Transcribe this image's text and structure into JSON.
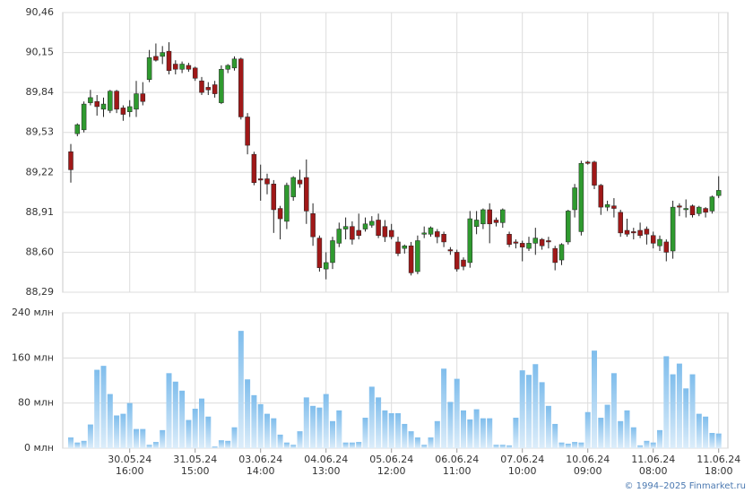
{
  "chart_data": [
    {
      "type": "candlestick",
      "up_color": "#2f9a2f",
      "down_color": "#a01818",
      "wick_color": "#222222",
      "open": [
        89.38,
        89.52,
        89.55,
        89.76,
        89.77,
        89.71,
        89.7,
        89.85,
        89.72,
        89.69,
        89.71,
        89.83,
        89.94,
        90.12,
        90.12,
        90.16,
        90.06,
        90.02,
        90.05,
        90.03,
        89.93,
        89.88,
        89.9,
        89.76,
        90.02,
        90.03,
        90.1,
        89.65,
        89.36,
        89.17,
        89.17,
        89.13,
        88.94,
        88.84,
        89.03,
        89.16,
        89.18,
        88.9,
        88.71,
        88.47,
        88.52,
        88.67,
        88.78,
        88.8,
        88.77,
        88.78,
        88.81,
        88.85,
        88.8,
        88.77,
        88.68,
        88.63,
        88.65,
        88.45,
        88.74,
        88.74,
        88.76,
        88.74,
        88.62,
        88.6,
        88.54,
        88.52,
        88.8,
        88.82,
        88.93,
        88.85,
        88.83,
        88.74,
        88.68,
        88.67,
        88.63,
        88.67,
        88.7,
        88.69,
        88.63,
        88.54,
        88.68,
        88.93,
        88.76,
        89.3,
        89.3,
        89.12,
        88.95,
        88.96,
        88.91,
        88.77,
        88.76,
        88.77,
        88.78,
        88.73,
        88.65,
        88.68,
        88.61,
        88.96,
        88.93,
        88.96,
        88.9,
        88.94,
        88.92,
        89.04
      ],
      "high": [
        89.44,
        89.6,
        89.77,
        89.86,
        89.82,
        89.8,
        89.86,
        89.86,
        89.74,
        89.78,
        89.93,
        89.92,
        90.17,
        90.22,
        90.2,
        90.23,
        90.09,
        90.08,
        90.07,
        90.04,
        89.96,
        89.92,
        89.93,
        90.05,
        90.06,
        90.12,
        90.11,
        89.68,
        89.38,
        89.28,
        89.21,
        89.16,
        88.96,
        89.14,
        89.19,
        89.24,
        89.32,
        88.98,
        88.73,
        88.6,
        88.72,
        88.83,
        88.87,
        88.84,
        88.9,
        88.87,
        88.88,
        88.9,
        88.85,
        88.82,
        88.72,
        88.66,
        88.68,
        88.73,
        88.8,
        88.8,
        88.78,
        88.76,
        88.64,
        88.62,
        88.56,
        88.92,
        88.92,
        88.94,
        88.98,
        88.87,
        88.94,
        88.76,
        88.7,
        88.69,
        88.72,
        88.79,
        88.71,
        88.72,
        88.65,
        88.67,
        88.93,
        89.13,
        89.31,
        89.31,
        89.31,
        89.13,
        89.0,
        89.02,
        88.93,
        88.86,
        88.79,
        88.83,
        88.8,
        88.76,
        88.73,
        88.7,
        89.0,
        88.98,
        89.01,
        88.97,
        88.96,
        88.95,
        89.04,
        89.19
      ],
      "low": [
        89.14,
        89.5,
        89.53,
        89.74,
        89.66,
        89.65,
        89.68,
        89.68,
        89.62,
        89.65,
        89.65,
        89.74,
        89.92,
        90.08,
        90.06,
        89.98,
        89.98,
        89.99,
        90.0,
        89.93,
        89.82,
        89.82,
        89.8,
        89.75,
        89.99,
        90.01,
        89.63,
        89.36,
        89.12,
        89.0,
        89.05,
        88.75,
        88.7,
        88.78,
        89.0,
        89.1,
        88.82,
        88.65,
        88.45,
        88.39,
        88.47,
        88.64,
        88.7,
        88.66,
        88.7,
        88.76,
        88.79,
        88.71,
        88.68,
        88.7,
        88.57,
        88.59,
        88.42,
        88.43,
        88.71,
        88.72,
        88.67,
        88.64,
        88.58,
        88.45,
        88.46,
        88.48,
        88.74,
        88.78,
        88.67,
        88.8,
        88.79,
        88.64,
        88.63,
        88.53,
        88.61,
        88.58,
        88.62,
        88.63,
        88.46,
        88.5,
        88.66,
        88.87,
        88.73,
        89.28,
        89.09,
        88.89,
        88.92,
        88.87,
        88.72,
        88.72,
        88.7,
        88.71,
        88.66,
        88.63,
        88.61,
        88.53,
        88.55,
        88.88,
        88.87,
        88.87,
        88.88,
        88.87,
        88.9,
        89.02
      ],
      "close": [
        89.24,
        89.59,
        89.75,
        89.8,
        89.73,
        89.75,
        89.85,
        89.71,
        89.67,
        89.73,
        89.83,
        89.77,
        90.11,
        90.09,
        90.15,
        90.01,
        90.02,
        90.06,
        90.02,
        89.95,
        89.84,
        89.86,
        89.83,
        90.02,
        90.05,
        90.1,
        89.65,
        89.43,
        89.14,
        89.16,
        89.13,
        88.93,
        88.86,
        89.12,
        89.18,
        89.13,
        88.92,
        88.72,
        88.48,
        88.52,
        88.69,
        88.78,
        88.8,
        88.7,
        88.73,
        88.82,
        88.84,
        88.73,
        88.72,
        88.72,
        88.59,
        88.65,
        88.44,
        88.69,
        88.75,
        88.79,
        88.72,
        88.68,
        88.61,
        88.47,
        88.49,
        88.86,
        88.85,
        88.93,
        88.82,
        88.83,
        88.93,
        88.66,
        88.67,
        88.64,
        88.67,
        88.71,
        88.65,
        88.68,
        88.52,
        88.66,
        88.92,
        89.1,
        89.29,
        89.29,
        89.12,
        88.95,
        88.97,
        88.94,
        88.75,
        88.74,
        88.75,
        88.73,
        88.74,
        88.67,
        88.7,
        88.6,
        88.95,
        88.95,
        88.94,
        88.89,
        88.95,
        88.91,
        89.03,
        89.08
      ],
      "ylim": [
        88.29,
        90.46
      ],
      "yticks": [
        {
          "value": 88.29,
          "label": "88,29"
        },
        {
          "value": 88.6,
          "label": "88,60"
        },
        {
          "value": 88.91,
          "label": "88,91"
        },
        {
          "value": 89.22,
          "label": "89,22"
        },
        {
          "value": 89.53,
          "label": "89,53"
        },
        {
          "value": 89.84,
          "label": "89,84"
        },
        {
          "value": 90.15,
          "label": "90,15"
        },
        {
          "value": 90.46,
          "label": "90,46"
        }
      ],
      "grid": true
    },
    {
      "type": "bar",
      "color": "#86c3ef",
      "values": [
        19,
        10,
        13,
        42,
        139,
        146,
        96,
        58,
        61,
        80,
        34,
        34,
        6,
        11,
        32,
        133,
        118,
        102,
        50,
        70,
        88,
        56,
        3,
        14,
        13,
        37,
        208,
        122,
        94,
        78,
        61,
        53,
        24,
        10,
        6,
        30,
        90,
        75,
        72,
        96,
        48,
        67,
        10,
        10,
        11,
        54,
        109,
        90,
        67,
        62,
        62,
        43,
        30,
        19,
        6,
        19,
        48,
        141,
        82,
        123,
        67,
        51,
        69,
        53,
        53,
        6,
        6,
        5,
        54,
        138,
        130,
        149,
        117,
        75,
        43,
        10,
        8,
        11,
        10,
        64,
        173,
        54,
        77,
        133,
        48,
        67,
        37,
        5,
        13,
        10,
        32,
        163,
        131,
        150,
        106,
        131,
        61,
        56,
        27,
        26
      ],
      "ylim": [
        0,
        240
      ],
      "yticks": [
        {
          "value": 0,
          "label": "0 млн"
        },
        {
          "value": 80,
          "label": "80 млн"
        },
        {
          "value": 160,
          "label": "160 млн"
        },
        {
          "value": 240,
          "label": "240 млн"
        }
      ],
      "xticks": [
        {
          "value": 9,
          "label": "30.05.24",
          "time": "16:00"
        },
        {
          "value": 19,
          "label": "31.05.24",
          "time": "15:00"
        },
        {
          "value": 29,
          "label": "03.06.24",
          "time": "14:00"
        },
        {
          "value": 39,
          "label": "04.06.24",
          "time": "13:00"
        },
        {
          "value": 49,
          "label": "05.06.24",
          "time": "12:00"
        },
        {
          "value": 59,
          "label": "06.06.24",
          "time": "11:00"
        },
        {
          "value": 69,
          "label": "07.06.24",
          "time": "10:00"
        },
        {
          "value": 79,
          "label": "10.06.24",
          "time": "09:00"
        },
        {
          "value": 89,
          "label": "11.06.24",
          "time": "08:00"
        },
        {
          "value": 99,
          "label": "11.06.24",
          "time": "18:00"
        }
      ],
      "grid": true
    }
  ],
  "footer": "© 1994–2025 Finmarket.ru"
}
